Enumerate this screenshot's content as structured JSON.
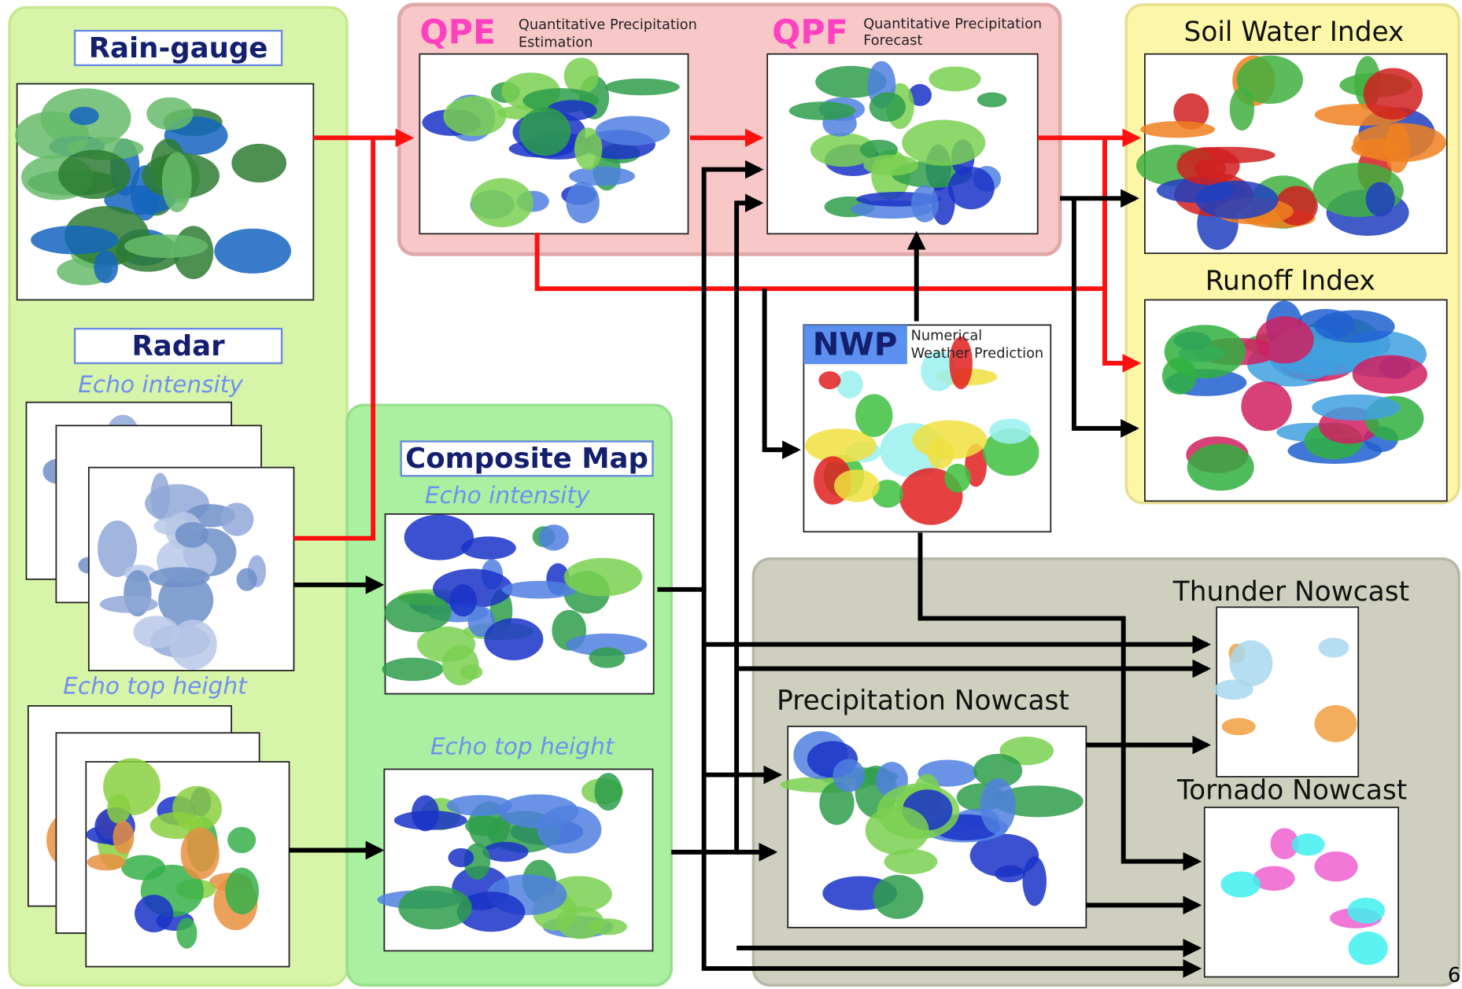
{
  "observation": {
    "rain_gauge": "Rain-gauge",
    "radar": "Radar",
    "echo_intensity": "Echo intensity",
    "echo_top_height": "Echo top height"
  },
  "composite": {
    "title": "Composite Map",
    "echo_intensity": "Echo intensity",
    "echo_top_height": "Echo top height"
  },
  "qpe": {
    "abbr": "QPE",
    "description": [
      "Quantitative Precipitation",
      "Estimation"
    ]
  },
  "qpf": {
    "abbr": "QPF",
    "description": [
      "Quantitative Precipitation",
      "Forecast"
    ]
  },
  "nwp": {
    "abbr": "NWP",
    "description": [
      "Numerical",
      "Weather Prediction"
    ]
  },
  "soil_water_index": "Soil Water Index",
  "runoff_index": "Runoff Index",
  "thunder_nowcast": "Thunder Nowcast",
  "precipitation_nowcast": "Precipitation Nowcast",
  "tornado_nowcast": "Tornado Nowcast",
  "page_number": "6"
}
